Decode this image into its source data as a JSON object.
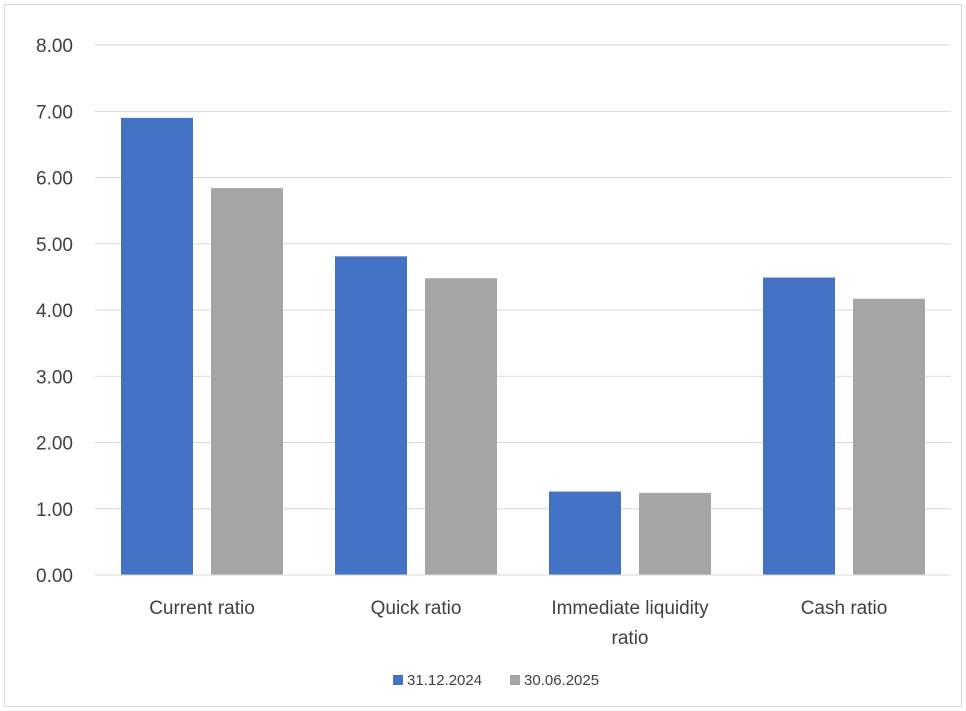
{
  "chart_data": {
    "type": "bar",
    "title": "",
    "xlabel": "",
    "ylabel": "",
    "categories": [
      [
        "Current ratio"
      ],
      [
        "Quick ratio"
      ],
      [
        "Immediate liquidity",
        "ratio"
      ],
      [
        "Cash ratio"
      ]
    ],
    "series": [
      {
        "name": "31.12.2024",
        "color": "#4472c4",
        "values": [
          6.9,
          4.81,
          1.26,
          4.49
        ]
      },
      {
        "name": "30.06.2025",
        "color": "#a5a5a5",
        "values": [
          5.84,
          4.48,
          1.24,
          4.17
        ]
      }
    ],
    "yticks": [
      "0.00",
      "1.00",
      "2.00",
      "3.00",
      "4.00",
      "5.00",
      "6.00",
      "7.00",
      "8.00"
    ],
    "ylim": [
      0,
      8
    ],
    "grid": true,
    "gridline_color": "#d9d9d9",
    "legend_position": "bottom"
  }
}
